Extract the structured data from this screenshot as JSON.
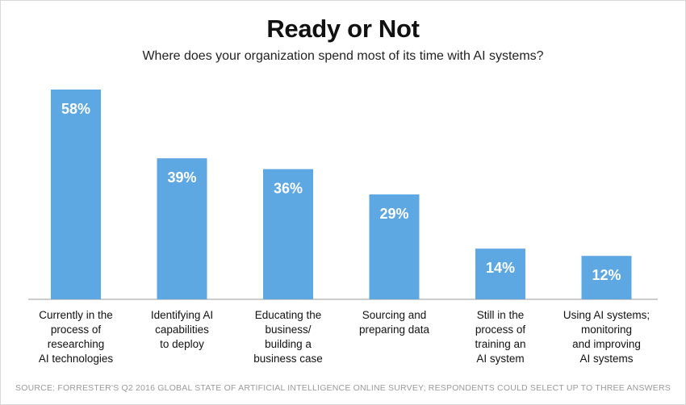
{
  "chart_data": {
    "type": "bar",
    "title": "Ready or Not",
    "subtitle": "Where does your organization spend most of its time with AI systems?",
    "categories": [
      [
        "Currently in the",
        "process of",
        "researching",
        "AI technologies"
      ],
      [
        "Identifying AI",
        "capabilities",
        "to deploy"
      ],
      [
        "Educating the",
        "business/",
        "building a",
        "business case"
      ],
      [
        "Sourcing and",
        "preparing data"
      ],
      [
        "Still in the",
        "process of",
        "training an",
        "AI system"
      ],
      [
        "Using AI systems;",
        "monitoring",
        "and improving",
        "AI systems"
      ]
    ],
    "values": [
      58,
      39,
      36,
      29,
      14,
      12
    ],
    "value_labels": [
      "58%",
      "39%",
      "36%",
      "29%",
      "14%",
      "12%"
    ],
    "ylim": [
      0,
      58
    ],
    "xlabel": "",
    "ylabel": "",
    "grid": false,
    "source": "SOURCE: FORRESTER'S Q2 2016 GLOBAL STATE OF ARTIFICIAL INTELLIGENCE ONLINE SURVEY; RESPONDENTS COULD SELECT UP TO THREE ANSWERS"
  },
  "colors": {
    "bar": "#5DA7E2",
    "bar_label": "#ffffff",
    "axis": "#999999",
    "category_text": "#111111"
  }
}
